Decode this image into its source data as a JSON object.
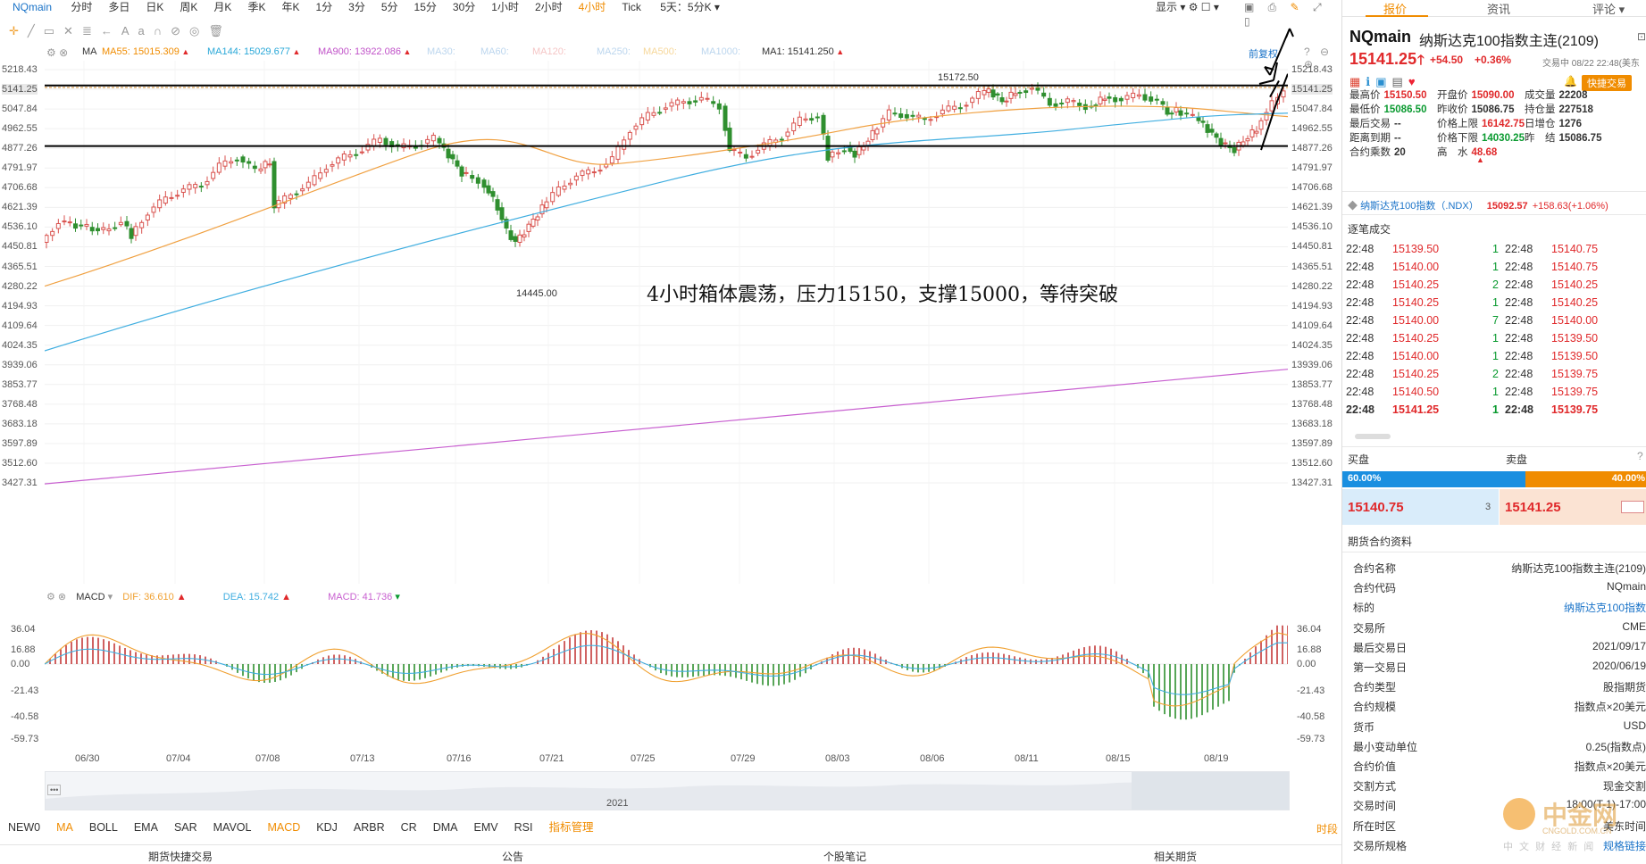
{
  "toolbar": {
    "symbol": "NQmain",
    "timeframes": [
      "分时",
      "多日",
      "日K",
      "周K",
      "月K",
      "季K",
      "年K",
      "1分",
      "3分",
      "5分",
      "15分",
      "30分",
      "1小时",
      "2小时",
      "4小时",
      "Tick"
    ],
    "active_timeframe": "4小时",
    "multi_period": "5天：5分K",
    "display_label": "显示"
  },
  "ma_bar": {
    "label": "MA",
    "items": [
      {
        "text": "MA55: 15015.309",
        "color": "#f08c00"
      },
      {
        "text": "MA144: 15029.677",
        "color": "#2aa8d8"
      },
      {
        "text": "MA900: 13922.086",
        "color": "#c051c8"
      },
      {
        "text": "MA30:",
        "color": "#bcd6ee"
      },
      {
        "text": "MA60:",
        "color": "#bcd6ee"
      },
      {
        "text": "MA120:",
        "color": "#f5c6c6"
      },
      {
        "text": "MA250:",
        "color": "#bcd6ee"
      },
      {
        "text": "MA500:",
        "color": "#f6d79a"
      },
      {
        "text": "MA1000:",
        "color": "#bcd6ee"
      },
      {
        "text": "MA1: 15141.250",
        "color": "#333333"
      }
    ],
    "adjust_label": "前复权"
  },
  "price_axis": [
    "5218.43",
    "5141.25",
    "5047.84",
    "4962.55",
    "4877.26",
    "4791.97",
    "4706.68",
    "4621.39",
    "4536.10",
    "4450.81",
    "4365.51",
    "4280.22",
    "4194.93",
    "4109.64",
    "4024.35",
    "3939.06",
    "3853.77",
    "3768.48",
    "3683.18",
    "3597.89",
    "3512.60",
    "3427.31"
  ],
  "price_axis_right": [
    "15218.43",
    "15141.25",
    "15047.84",
    "14962.55",
    "14877.26",
    "14791.97",
    "14706.68",
    "14621.39",
    "14536.10",
    "14450.81",
    "14365.51",
    "14280.22",
    "14194.93",
    "14109.64",
    "14024.35",
    "13939.06",
    "13853.77",
    "13768.48",
    "13683.18",
    "13597.89",
    "13512.60",
    "13427.31"
  ],
  "chart": {
    "high_label": "15172.50",
    "low_label": "14445.00",
    "annotation": "4小时箱体震荡，压力15150，支撑15000，等待突破",
    "date_labels": [
      "06/30",
      "07/04",
      "07/08",
      "07/13",
      "07/16",
      "07/21",
      "07/25",
      "07/29",
      "08/03",
      "08/06",
      "08/11",
      "08/15",
      "08/19"
    ],
    "year_label": "2021",
    "colors": {
      "up": "#d9534f",
      "down": "#2f8f2f",
      "ma55": "#f0a040",
      "ma144": "#40aee0",
      "ma900": "#c860d0"
    }
  },
  "macd": {
    "label": "MACD",
    "dif": "DIF: 36.610",
    "dea": "DEA: 15.742",
    "macd": "MACD: 41.736",
    "axis": [
      "36.04",
      "16.88",
      "0.00",
      "-21.43",
      "-40.58",
      "-59.73"
    ]
  },
  "indicators": [
    "NEW0",
    "MA",
    "BOLL",
    "EMA",
    "SAR",
    "MAVOL",
    "MACD",
    "KDJ",
    "ARBR",
    "CR",
    "DMA",
    "EMV",
    "RSI",
    "指标管理"
  ],
  "active_indicators": [
    "MA",
    "MACD"
  ],
  "time_share": "时段",
  "bottom_tabs": [
    "期货快捷交易",
    "公告",
    "个股笔记",
    "相关期货"
  ],
  "right": {
    "tabs": [
      "报价",
      "资讯",
      "评论"
    ],
    "symbol": "NQmain",
    "name": "纳斯达克100指数主连(2109)",
    "price": "15141.25",
    "change": "+54.50",
    "change_pct": "+0.36%",
    "trade_time": "交易中 08/22 22:48(美东",
    "quick_trade": "快捷交易",
    "quote": [
      {
        "k": "最高价",
        "v": "15150.50",
        "c": "red"
      },
      {
        "k": "开盘价",
        "v": "15090.00",
        "c": "red"
      },
      {
        "k": "成交量",
        "v": "22208",
        "c": "normal"
      },
      {
        "k": "最低价",
        "v": "15086.50",
        "c": "green"
      },
      {
        "k": "昨收价",
        "v": "15086.75",
        "c": "normal"
      },
      {
        "k": "持仓量",
        "v": "227518",
        "c": "normal"
      },
      {
        "k": "最后交易",
        "v": "--",
        "c": "normal"
      },
      {
        "k": "价格上限",
        "v": "16142.75",
        "c": "red"
      },
      {
        "k": "日增仓",
        "v": "1276",
        "c": "normal"
      },
      {
        "k": "距离到期",
        "v": "--",
        "c": "normal"
      },
      {
        "k": "价格下限",
        "v": "14030.25",
        "c": "green"
      },
      {
        "k": "昨　结",
        "v": "15086.75",
        "c": "normal"
      },
      {
        "k": "合约乘数",
        "v": "20",
        "c": "normal"
      },
      {
        "k": "高　水",
        "v": "48.68",
        "c": "red"
      }
    ],
    "index": {
      "name": "纳斯达克100指数（.NDX）",
      "price": "15092.57",
      "change": "+158.63(+1.06%)"
    },
    "ticks_title": "逐笔成交",
    "ticks": [
      [
        "22:48",
        "15139.50",
        "1",
        "22:48",
        "15140.75"
      ],
      [
        "22:48",
        "15140.00",
        "1",
        "22:48",
        "15140.75"
      ],
      [
        "22:48",
        "15140.25",
        "2",
        "22:48",
        "15140.25"
      ],
      [
        "22:48",
        "15140.25",
        "1",
        "22:48",
        "15140.25"
      ],
      [
        "22:48",
        "15140.00",
        "7",
        "22:48",
        "15140.00"
      ],
      [
        "22:48",
        "15140.25",
        "1",
        "22:48",
        "15139.50"
      ],
      [
        "22:48",
        "15140.00",
        "1",
        "22:48",
        "15139.50"
      ],
      [
        "22:48",
        "15140.25",
        "2",
        "22:48",
        "15139.75"
      ],
      [
        "22:48",
        "15140.50",
        "1",
        "22:48",
        "15139.75"
      ],
      [
        "22:48",
        "15141.25",
        "1",
        "22:48",
        "15139.75"
      ]
    ],
    "buy_label": "买盘",
    "sell_label": "卖盘",
    "buy_pct": "60.00%",
    "sell_pct": "40.00%",
    "bid_price": "15140.75",
    "bid_vol": "3",
    "ask_price": "15141.25",
    "contract_title": "期货合约资料",
    "contract": [
      {
        "k": "合约名称",
        "v": "纳斯达克100指数主连(2109)"
      },
      {
        "k": "合约代码",
        "v": "NQmain"
      },
      {
        "k": "标的",
        "v": "纳斯达克100指数",
        "link": true
      },
      {
        "k": "交易所",
        "v": "CME"
      },
      {
        "k": "最后交易日",
        "v": "2021/09/17"
      },
      {
        "k": "第一交易日",
        "v": "2020/06/19"
      },
      {
        "k": "合约类型",
        "v": "股指期货"
      },
      {
        "k": "合约规模",
        "v": "指数点×20美元"
      },
      {
        "k": "货币",
        "v": "USD"
      },
      {
        "k": "最小变动单位",
        "v": "0.25(指数点)"
      },
      {
        "k": "合约价值",
        "v": "指数点×20美元"
      },
      {
        "k": "交割方式",
        "v": "现金交割"
      },
      {
        "k": "交易时间",
        "v": "18:00(T-1)-17:00"
      },
      {
        "k": "所在时区",
        "v": "美东时间"
      },
      {
        "k": "交易所规格",
        "v": "规格链接",
        "link": true
      }
    ],
    "watermark": "中金网",
    "watermark_sub": "CNGOLD.COM.CN",
    "watermark_cn": "中 文 财 经 新 闻"
  }
}
